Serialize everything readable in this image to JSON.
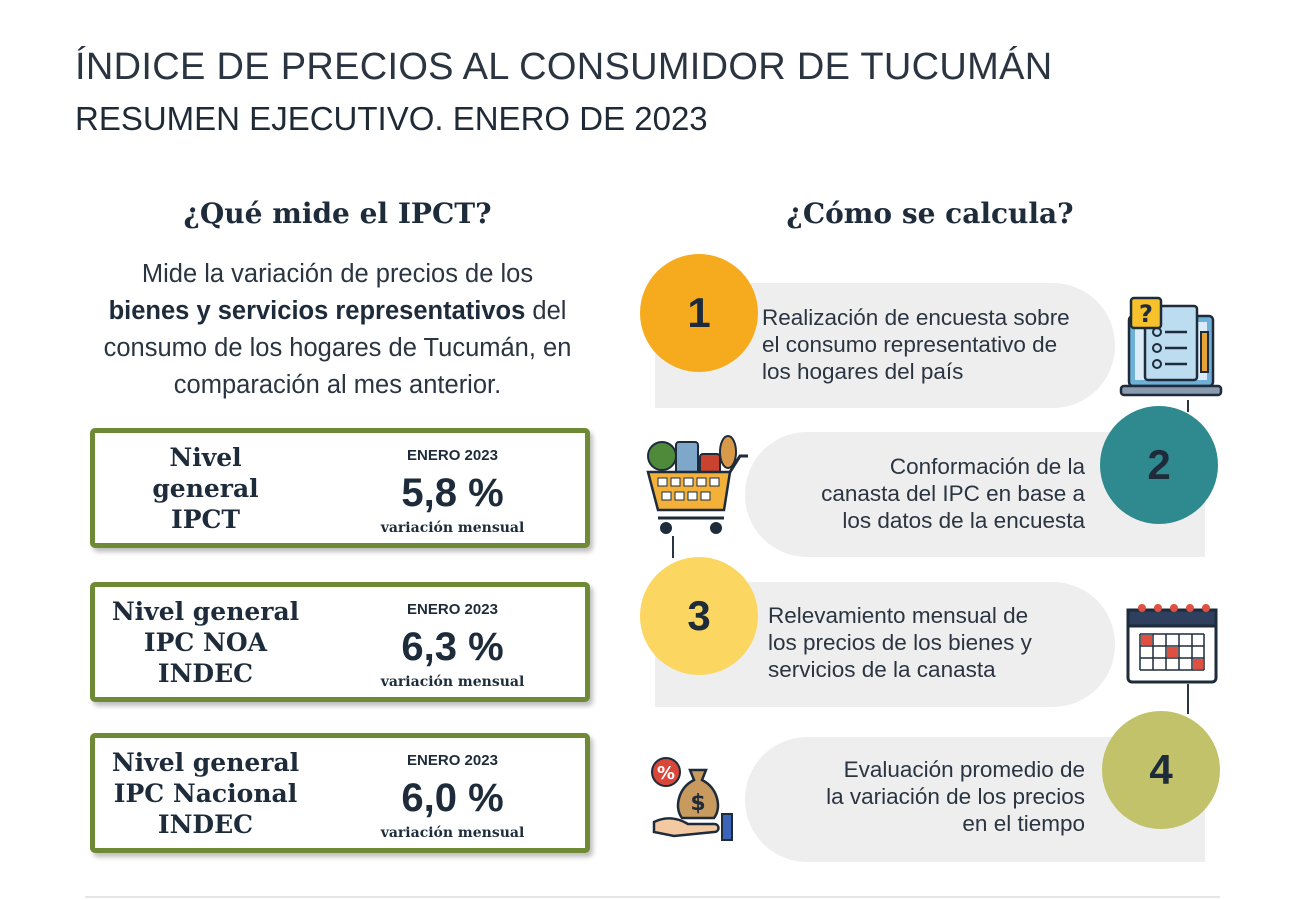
{
  "header": {
    "title": "ÍNDICE DE PRECIOS AL CONSUMIDOR DE TUCUMÁN",
    "subtitle": "RESUMEN EJECUTIVO. ENERO DE 2023"
  },
  "left": {
    "heading": "¿Qué mide el IPCT?",
    "description": {
      "part1": "Mide la variación de precios de los",
      "bold": "bienes y servicios representativos",
      "part2": " del consumo de los hogares de Tucumán, en comparación al mes anterior."
    },
    "cards": [
      {
        "label_lines": [
          "Nivel",
          "general",
          "IPCT"
        ],
        "period": "ENERO 2023",
        "value": "5,8 %",
        "unit": "variación mensual"
      },
      {
        "label_lines": [
          "Nivel general",
          "IPC NOA",
          "INDEC"
        ],
        "period": "ENERO 2023",
        "value": "6,3 %",
        "unit": "variación mensual"
      },
      {
        "label_lines": [
          "Nivel general",
          "IPC Nacional",
          "INDEC"
        ],
        "period": "ENERO 2023",
        "value": "6,0 %",
        "unit": "variación mensual"
      }
    ]
  },
  "right": {
    "heading": "¿Cómo se calcula?",
    "steps": [
      {
        "number": "1",
        "lines": [
          "Realización de encuesta sobre",
          "el consumo representativo de",
          "los hogares del país"
        ],
        "icon": "survey-laptop-icon",
        "color": "#f6ab1f"
      },
      {
        "number": "2",
        "lines": [
          "Conformación de la",
          "canasta del IPC en base a",
          "los datos de la encuesta"
        ],
        "icon": "shopping-cart-icon",
        "color": "#2e8a8e"
      },
      {
        "number": "3",
        "lines": [
          "Relevamiento mensual de",
          "los precios de los bienes y",
          "servicios de la canasta"
        ],
        "icon": "calendar-icon",
        "color": "#fbd660"
      },
      {
        "number": "4",
        "lines": [
          "Evaluación promedio de",
          "la variación de los precios",
          "en el tiempo"
        ],
        "icon": "money-bag-hand-icon",
        "color": "#c1c26a"
      }
    ]
  }
}
